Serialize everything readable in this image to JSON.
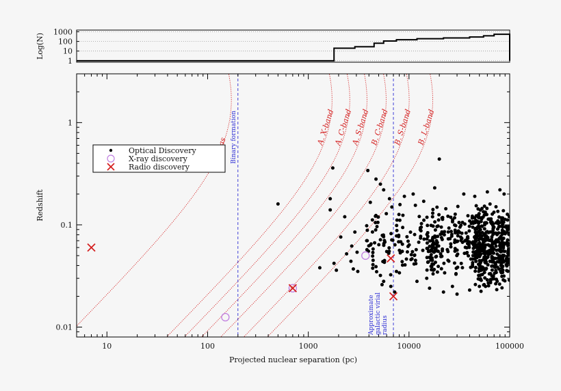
{
  "chart_data": [
    {
      "type": "histogram",
      "panel": "top",
      "ylabel": "Log(N)",
      "yscale": "log",
      "y_ticks": [
        1,
        10,
        100,
        1000
      ],
      "y_tick_labels": [
        "1",
        "10",
        "100",
        "1000"
      ],
      "grid": true,
      "bins": [
        {
          "x0": 5,
          "x1": 7.5,
          "count": 1
        },
        {
          "x0": 35,
          "x1": 50,
          "count": 1
        },
        {
          "x0": 130,
          "x1": 200,
          "count": 1
        },
        {
          "x0": 1500,
          "x1": 1800,
          "count": 1
        },
        {
          "x0": 1800,
          "x1": 2900,
          "count": 20
        },
        {
          "x0": 2900,
          "x1": 4500,
          "count": 28
        },
        {
          "x0": 4500,
          "x1": 5600,
          "count": 65
        },
        {
          "x0": 5600,
          "x1": 7500,
          "count": 110
        },
        {
          "x0": 7500,
          "x1": 12000,
          "count": 150
        },
        {
          "x0": 12000,
          "x1": 22000,
          "count": 190
        },
        {
          "x0": 22000,
          "x1": 40000,
          "count": 230
        },
        {
          "x0": 40000,
          "x1": 55000,
          "count": 290
        },
        {
          "x0": 55000,
          "x1": 70000,
          "count": 380
        },
        {
          "x0": 70000,
          "x1": 100000,
          "count": 550
        }
      ]
    },
    {
      "type": "scatter",
      "panel": "main",
      "xlabel": "Projected nuclear separation (pc)",
      "ylabel": "Redshift",
      "xscale": "log",
      "yscale": "log",
      "xlim": [
        5,
        100000
      ],
      "ylim": [
        0.008,
        3
      ],
      "x_ticks": [
        10,
        100,
        1000,
        10000,
        100000
      ],
      "x_tick_labels": [
        "10",
        "100",
        "1000",
        "10000",
        "100000"
      ],
      "y_ticks": [
        0.01,
        0.1,
        1
      ],
      "y_tick_labels": [
        "0.01",
        "0.1",
        "1"
      ],
      "legend": {
        "position": "upper-left",
        "entries": [
          {
            "label": "Optical Discovery",
            "marker": "dot",
            "color": "#000000"
          },
          {
            "label": "X-ray discovery",
            "marker": "open-circle",
            "color": "#c07ee0"
          },
          {
            "label": "Radio discovery",
            "marker": "cross",
            "color": "#d42020"
          }
        ]
      },
      "optical_points": [
        [
          500,
          0.16
        ],
        [
          1750,
          0.36
        ],
        [
          1650,
          0.18
        ],
        [
          1650,
          0.14
        ],
        [
          2100,
          0.076
        ],
        [
          2300,
          0.12
        ],
        [
          2900,
          0.085
        ],
        [
          2700,
          0.062
        ],
        [
          2650,
          0.044
        ],
        [
          3050,
          0.054
        ],
        [
          3100,
          0.035
        ],
        [
          2800,
          0.037
        ],
        [
          2400,
          0.052
        ],
        [
          1300,
          0.038
        ],
        [
          1900,
          0.036
        ],
        [
          1800,
          0.042
        ],
        [
          3900,
          0.34
        ],
        [
          4700,
          0.28
        ],
        [
          5200,
          0.25
        ],
        [
          5600,
          0.22
        ],
        [
          6400,
          0.18
        ],
        [
          3800,
          0.098
        ],
        [
          4200,
          0.065
        ],
        [
          4400,
          0.045
        ],
        [
          4700,
          0.039
        ],
        [
          5200,
          0.032
        ],
        [
          5600,
          0.028
        ],
        [
          5400,
          0.026
        ],
        [
          6600,
          0.025
        ],
        [
          7200,
          0.022
        ],
        [
          7500,
          0.035
        ],
        [
          20000,
          0.44
        ],
        [
          18000,
          0.23
        ],
        [
          11000,
          0.2
        ],
        [
          9000,
          0.19
        ],
        [
          14000,
          0.17
        ],
        [
          35000,
          0.2
        ],
        [
          45000,
          0.19
        ],
        [
          60000,
          0.21
        ],
        [
          80000,
          0.22
        ],
        [
          88000,
          0.2
        ],
        [
          16000,
          0.024
        ],
        [
          22000,
          0.022
        ],
        [
          30000,
          0.021
        ],
        [
          40000,
          0.023
        ],
        [
          27000,
          0.025
        ],
        [
          50000,
          0.025
        ],
        [
          15000,
          0.03
        ],
        [
          12000,
          0.028
        ]
      ],
      "optical_cloud": {
        "description_hidden": true,
        "seed": 7,
        "groups": [
          {
            "n": 120,
            "xrange": [
              3800,
              20000
            ],
            "yrange": [
              0.03,
              0.18
            ]
          },
          {
            "n": 220,
            "xrange": [
              15000,
              60000
            ],
            "yrange": [
              0.028,
              0.17
            ]
          },
          {
            "n": 380,
            "xrange": [
              45000,
              100000
            ],
            "yrange": [
              0.022,
              0.17
            ]
          }
        ]
      },
      "xray_points": [
        [
          150,
          0.0125
        ],
        [
          700,
          0.024
        ],
        [
          3700,
          0.05
        ]
      ],
      "radio_points": [
        [
          7,
          0.06
        ],
        [
          700,
          0.024
        ],
        [
          6600,
          0.047
        ],
        [
          7000,
          0.02
        ]
      ],
      "curves": [
        {
          "label": "1 mas",
          "k": 0.18
        },
        {
          "label": "A. X-band",
          "k": 1.8
        },
        {
          "label": "A. C-band",
          "k": 2.7
        },
        {
          "label": "A. S-band",
          "k": 4.0
        },
        {
          "label": "B. C-band",
          "k": 6.2
        },
        {
          "label": "B. S-band",
          "k": 10.5
        },
        {
          "label": "B. L-band",
          "k": 18.0
        }
      ],
      "vertical_lines": [
        {
          "x": 200,
          "label": "Binary formation"
        },
        {
          "x": 7000,
          "label": "Approximate galactic virial radius"
        }
      ],
      "vline_label_lines": [
        "Approximate",
        "galactic virial",
        "radius"
      ]
    }
  ],
  "colors": {
    "background": "#f6f6f6",
    "curve": "#d42020",
    "vline": "#2b2bd4",
    "xray": "#c07ee0",
    "radio": "#d42020",
    "optical": "#000000"
  }
}
